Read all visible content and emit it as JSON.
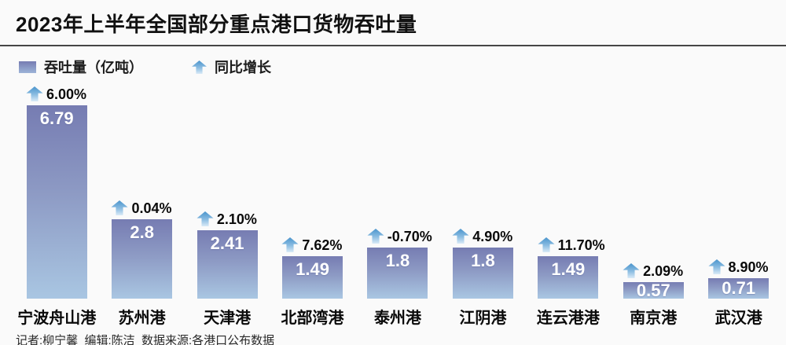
{
  "title": "2023年上半年全国部分重点港口货物吞吐量",
  "legend": {
    "throughput_label": "吞吐量（亿吨）",
    "growth_label": "同比增长"
  },
  "colors": {
    "bar_gradient_top": "#767cb2",
    "bar_gradient_bottom": "#a9c6e2",
    "arrow_gradient_top": "#4a94cc",
    "arrow_gradient_bottom": "#d9eaf7",
    "divider": "#454545",
    "background": "#fafafa"
  },
  "chart_data": {
    "type": "bar",
    "title": "2023年上半年全国部分重点港口货物吞吐量",
    "categories": [
      "宁波舟山港",
      "苏州港",
      "天津港",
      "北部湾港",
      "泰州港",
      "江阴港",
      "连云港港",
      "南京港",
      "武汉港"
    ],
    "values": [
      6.79,
      2.8,
      2.41,
      1.49,
      1.8,
      1.8,
      1.49,
      0.57,
      0.71
    ],
    "value_labels": [
      "6.79",
      "2.8",
      "2.41",
      "1.49",
      "1.8",
      "1.8",
      "1.49",
      "0.57",
      "0.71"
    ],
    "growth_labels": [
      "6.00%",
      "0.04%",
      "2.10%",
      "7.62%",
      "-0.70%",
      "4.90%",
      "11.70%",
      "2.09%",
      "8.90%"
    ],
    "series_name": "吞吐量（亿吨）",
    "secondary_series_name": "同比增长",
    "xlabel": "",
    "ylabel": "吞吐量（亿吨）",
    "ylim": [
      0,
      6.79
    ],
    "grid": false,
    "legend_position": "top-left",
    "value_labels_position": "inside-top",
    "growth_labels_position": "above-bar"
  },
  "footer": "记者:柳宁馨  编辑:陈洁  数据来源:各港口公布数据"
}
